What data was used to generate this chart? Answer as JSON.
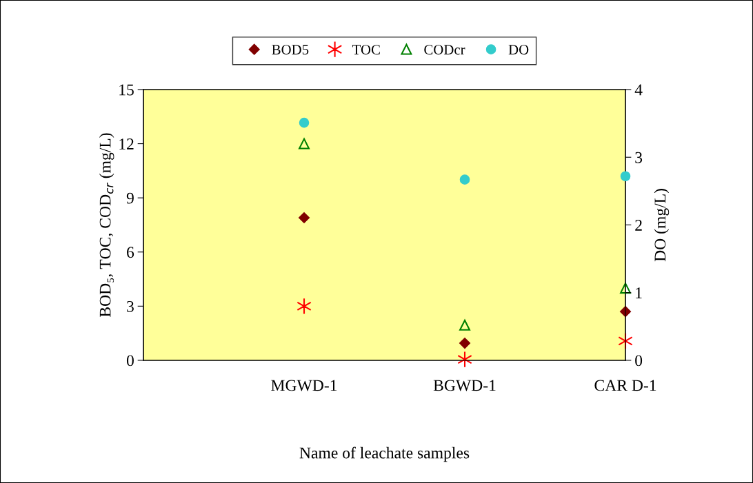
{
  "chart_data": {
    "type": "scatter",
    "xlabel": "Name of leachate samples",
    "ylabel": "BOD₅, TOC, COD$_{cr}$ (mg/L)",
    "y2label": "DO (mg/L)",
    "categories": [
      null,
      "MGWD-1",
      "BGWD-1",
      "CAR D-1"
    ],
    "series": [
      {
        "name": "BOD5",
        "color": "#800000",
        "marker": "diamond",
        "values": [
          null,
          7.9,
          0.95,
          2.7
        ]
      },
      {
        "name": "TOC",
        "color": "#ff0000",
        "marker": "cross",
        "values": [
          null,
          3.0,
          0.05,
          1.07
        ]
      },
      {
        "name": "CODcr",
        "color": "#008000",
        "marker": "triangle",
        "values": [
          null,
          12.0,
          1.95,
          4.0
        ]
      },
      {
        "name": "DO",
        "color": "#33cccc",
        "marker": "circle",
        "axis": "y2",
        "values": [
          null,
          3.51,
          2.67,
          2.72
        ]
      }
    ],
    "ylim": [
      0,
      15
    ],
    "yticks": [
      0,
      3,
      6,
      9,
      12,
      15
    ],
    "y2lim": [
      0,
      4
    ],
    "y2ticks": [
      0,
      1,
      2,
      3,
      4
    ],
    "grid": false,
    "legend": "top"
  }
}
